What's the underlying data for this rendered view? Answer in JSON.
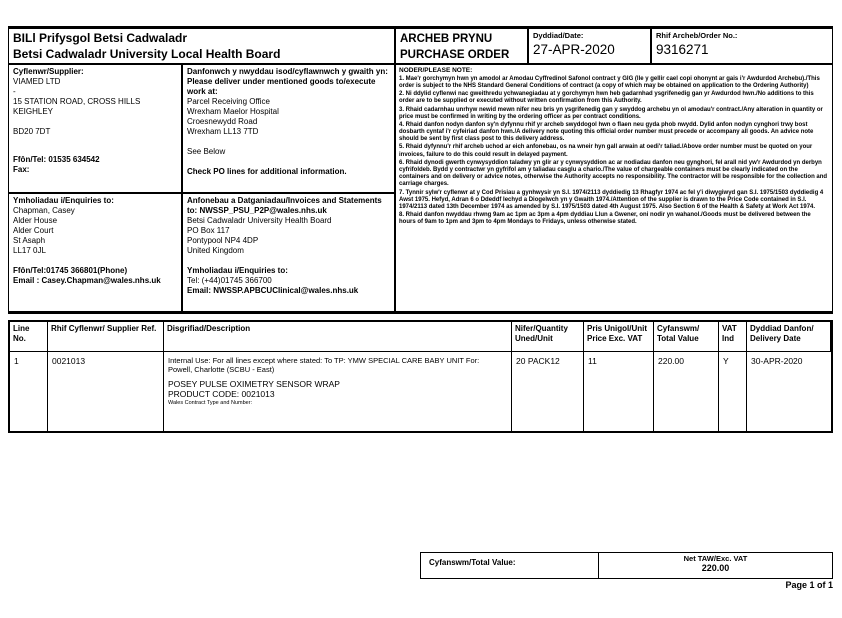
{
  "header": {
    "org_line1": "BILl Prifysgol Betsi Cadwaladr",
    "org_line2": "Betsi Cadwaladr University Local Health Board",
    "title_line1": "ARCHEB PRYNU",
    "title_line2": "PURCHASE ORDER",
    "date_label": "Dyddiad/Date:",
    "date_value": "27-APR-2020",
    "order_label": "Rhif Archeb/Order No.:",
    "order_value": "9316271"
  },
  "supplier": {
    "label": "Cyflenwr/Supplier:",
    "name": "VIAMED LTD",
    "line2": "-",
    "address1": "15 STATION ROAD, CROSS HILLS",
    "address2": "KEIGHLEY",
    "postcode": "BD20 7DT",
    "phone": "Ffôn/Tel:  01535 634542",
    "fax_label": "Fax:"
  },
  "delivery": {
    "label_cy": "Danfonwch y nwyddau isod/cyflawnwch y gwaith yn:",
    "label_en": "Please deliver under mentioned goods to/execute work at:",
    "address1": "Parcel Receiving Office",
    "address2": "Wrexham Maelor Hospital",
    "address3": "Croesnewydd Road",
    "address4": "Wrexham LL13 7TD",
    "see_below": "See Below",
    "check_note": "Check PO lines for additional information."
  },
  "enquiries": {
    "label": "Ymholiadau i/Enquiries to:",
    "name": "Chapman, Casey",
    "address1": "Alder House",
    "address2": "Alder Court",
    "address3": "St Asaph",
    "address4": "LL17 0JL",
    "phone": "Ffôn/Tel:01745 366801(Phone)",
    "email": "Email : Casey.Chapman@wales.nhs.uk"
  },
  "invoices": {
    "label": "Anfonebau a Datganiadau/Invoices and Statements",
    "to": "to: NWSSP_PSU_P2P@wales.nhs.uk",
    "address1": "Betsi Cadwaladr University Health Board",
    "address2": "PO Box 117",
    "address3": "Pontypool NP4 4DP",
    "address4": "United Kingdom",
    "enquiries_label": "Ymholiadau i/Enquiries to:",
    "tel": "Tel: (+44)01745 366700",
    "email": "Email: NWSSP.APBCUClinical@wales.nhs.uk"
  },
  "notes": {
    "title": "NODER/PLEASE NOTE:",
    "items": [
      "1. Mae'r gorchymyn hwn yn amodol ar Amodau Cyffredinol Safonol contract y GIG (lle y gellir cael copi ohonynt ar gais i'r Awdurdod Archebu)./This order is subject to the NHS Standard General Conditions of contract (a copy of which may be obtained on application to the Ordering Authority)",
      "2. Ni ddylid cyflenwi nac gweithredu ychwanegiadau at y gorchymyn hwn heb gadarnhad ysgrifenedig gan yr Awdurdod hwn./No additions to this order are to be supplied or executed without written confirmation from this Authority.",
      "3. Rhaid cadarnhau unrhyw newid mewn nifer neu bris yn ysgrifenedig gan y swyddog archebu yn ol amodau'r contract./Any alteration in quantity or price must be confirmed in writing by the ordering officer as per contract conditions.",
      "4. Rhaid danfon nodyn danfon sy'n dyfynnu rhif yr archeb swyddogol hwn o flaen neu gyda phob nwydd. Dylid anfon nodyn cynghori trwy bost dosbarth cyntaf i'r cyfeiriad danfon hwn./A delivery note quoting this official order number must precede or accompany all goods. An advice note should be sent by first class post to this delivery address.",
      "5. Rhaid dyfynnu'r rhif archeb uchod ar eich anfonebau, os na wneir hyn gall arwain at oedi'r taliad./Above order number must be quoted on your invoices, failure to do this could result in delayed payment.",
      "6. Rhaid dynodi gwerth cynwysyddion taladwy yn glir ar y cynwysyddion ac ar nodiadau danfon neu gynghori, fel arall nid yw'r Awdurdod yn derbyn cyfrifoldeb. Bydd y contractwr yn gyfrifol am y taliadau casglu a chario./The value of chargeable containers must be clearly indicated on the containers and on delivery or advice notes, otherwise the Authority accepts no responsibility. The contractor will be responsible for the collection and carriage charges.",
      "7. Tynnir sylw'r cyflenwr at y Cod Prisiau a gynhwysir yn S.I. 1974/2113 dyddiedig 13 Rhagfyr 1974 ac fel y'i diwygiwyd gan S.I. 1975/1503 dyddiedig 4 Awst 1975. Hefyd, Adran 6 o Ddeddf Iechyd a Diogelwch yn y Gwaith 1974./Attention of the supplier is drawn to the Price Code contained in S.I. 1974/2113 dated 13th December 1974 as amended by S.I. 1975/1503 dated 4th August 1975. Also Section 6 of the Health & Safety at Work Act 1974.",
      "8. Rhaid danfon nwyddau rhwng 9am ac 1pm ac 3pm a 4pm dyddiau Llun a Gwener, oni nodir yn wahanol./Goods must be delivered between the hours of 9am to 1pm and 3pm to 4pm Mondays to Fridays, unless otherwise stated."
    ]
  },
  "items_table": {
    "col_line": "Line No.",
    "col_ref": "Rhif Cyflenwr/ Supplier Ref.",
    "col_desc": "Disgrifiad/Description",
    "col_qty": "Nifer/Quantity Uned/Unit",
    "col_price": "Pris Unigol/Unit Price Exc. VAT",
    "col_total": "Cyfanswm/ Total Value",
    "col_vat": "VAT Ind",
    "col_date": "Dyddiad Danfon/ Delivery Date",
    "row": {
      "line_no": "1",
      "supplier_ref": "0021013",
      "desc_internal1": "Internal Use: For all lines except where stated: To TP: YMW SPECIAL CARE BABY UNIT For:",
      "desc_internal2": "Powell, Charlotte (SCBU - East)",
      "desc_product": "POSEY PULSE OXIMETRY SENSOR WRAP",
      "desc_code": "PRODUCT CODE: 0021013",
      "desc_contract": "Wales Contract Type and Number:",
      "qty": "20 PACK12",
      "unit_price": "11",
      "total": "220.00",
      "vat": "Y",
      "delivery_date": "30-APR-2020"
    }
  },
  "totals": {
    "label": "Cyfanswm/Total Value:",
    "net_label": "Net TAW/Exc. VAT",
    "net_value": "220.00"
  },
  "footer": {
    "page": "Page 1 of 1"
  }
}
